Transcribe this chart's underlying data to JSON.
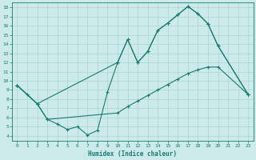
{
  "xlabel": "Humidex (Indice chaleur)",
  "bg_color": "#cceaea",
  "line_color": "#1a7a6e",
  "grid_color": "#b0d8d8",
  "xlim": [
    -0.5,
    23.5
  ],
  "ylim": [
    3.5,
    18.5
  ],
  "xticks": [
    0,
    1,
    2,
    3,
    4,
    5,
    6,
    7,
    8,
    9,
    10,
    11,
    12,
    13,
    14,
    15,
    16,
    17,
    18,
    19,
    20,
    21,
    22,
    23
  ],
  "yticks": [
    4,
    5,
    6,
    7,
    8,
    9,
    10,
    11,
    12,
    13,
    14,
    15,
    16,
    17,
    18
  ],
  "line1_x": [
    0,
    1,
    2,
    10,
    11,
    12,
    13,
    14,
    15,
    16,
    17,
    18,
    19,
    20,
    23
  ],
  "line1_y": [
    9.5,
    8.5,
    7.5,
    12.0,
    14.5,
    12.0,
    13.2,
    15.5,
    16.3,
    17.2,
    18.1,
    17.3,
    16.2,
    13.8,
    8.5
  ],
  "line2_x": [
    0,
    2,
    3,
    10,
    11,
    12,
    13,
    14,
    15,
    16,
    17,
    18,
    19,
    20,
    23
  ],
  "line2_y": [
    9.5,
    7.5,
    5.8,
    6.5,
    7.2,
    7.8,
    8.4,
    9.0,
    9.6,
    10.2,
    10.8,
    11.2,
    11.5,
    11.5,
    8.5
  ],
  "line3_x": [
    0,
    2,
    3,
    4,
    5,
    6,
    7,
    8,
    9,
    10,
    11,
    12,
    13,
    14,
    15,
    16,
    17,
    18,
    19,
    20,
    23
  ],
  "line3_y": [
    9.5,
    7.5,
    5.8,
    5.3,
    4.7,
    5.0,
    4.1,
    4.6,
    8.8,
    12.0,
    14.5,
    12.0,
    13.2,
    15.5,
    16.3,
    17.2,
    18.1,
    17.3,
    16.2,
    13.8,
    8.5
  ]
}
